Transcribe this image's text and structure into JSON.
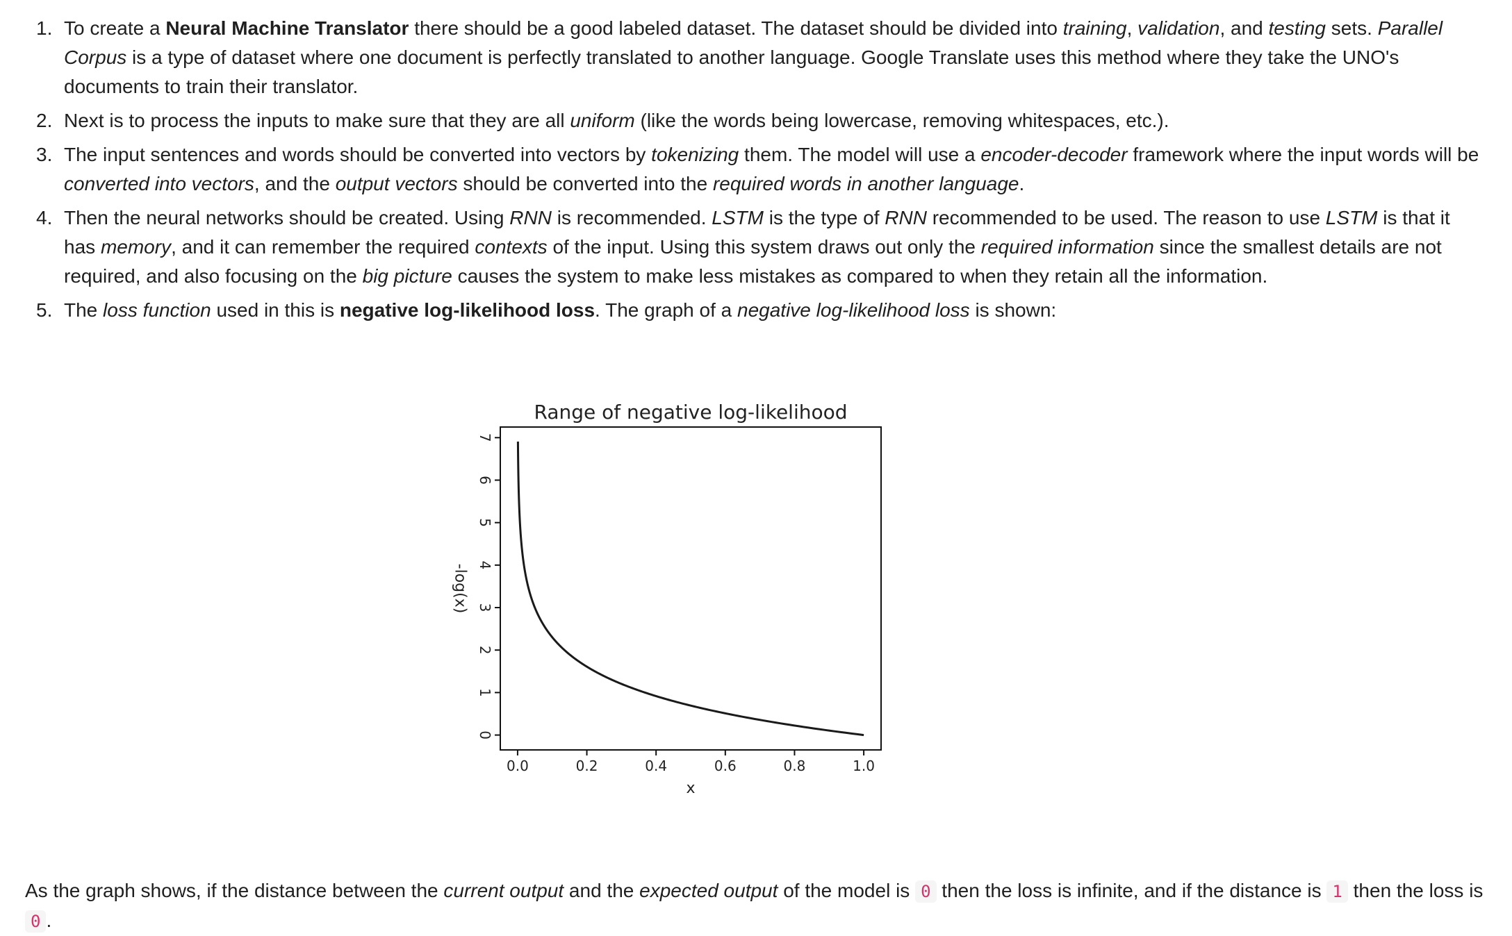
{
  "items": [
    {
      "num": "1.",
      "parts": [
        {
          "t": "To create a "
        },
        {
          "t": "Neural Machine Translator",
          "s": "b"
        },
        {
          "t": " there should be a good labeled dataset. The dataset should be divided into "
        },
        {
          "t": "training",
          "s": "i"
        },
        {
          "t": ", "
        },
        {
          "t": "validation",
          "s": "i"
        },
        {
          "t": ", and "
        },
        {
          "t": "testing",
          "s": "i"
        },
        {
          "t": " sets. "
        },
        {
          "t": "Parallel Corpus",
          "s": "i"
        },
        {
          "t": " is a type of dataset where one document is perfectly translated to another language. Google Translate uses this method where they take the UNO's documents to train their translator."
        }
      ]
    },
    {
      "num": "2.",
      "parts": [
        {
          "t": "Next is to process the inputs to make sure that they are all "
        },
        {
          "t": "uniform",
          "s": "i"
        },
        {
          "t": " (like the words being lowercase, removing whitespaces, etc.)."
        }
      ]
    },
    {
      "num": "3.",
      "parts": [
        {
          "t": "The input sentences and words should be converted into vectors by "
        },
        {
          "t": "tokenizing",
          "s": "i"
        },
        {
          "t": " them. The model will use a "
        },
        {
          "t": "encoder-decoder",
          "s": "i"
        },
        {
          "t": " framework where the input words will be "
        },
        {
          "t": "converted into vectors",
          "s": "i"
        },
        {
          "t": ", and the "
        },
        {
          "t": "output vectors",
          "s": "i"
        },
        {
          "t": " should be converted into the "
        },
        {
          "t": "required words in another language",
          "s": "i"
        },
        {
          "t": "."
        }
      ]
    },
    {
      "num": "4.",
      "parts": [
        {
          "t": "Then the neural networks should be created. Using "
        },
        {
          "t": "RNN",
          "s": "i"
        },
        {
          "t": " is recommended. "
        },
        {
          "t": "LSTM",
          "s": "i"
        },
        {
          "t": " is the type of "
        },
        {
          "t": "RNN",
          "s": "i"
        },
        {
          "t": " recommended to be used. The reason to use "
        },
        {
          "t": "LSTM",
          "s": "i"
        },
        {
          "t": " is that it has "
        },
        {
          "t": "memory",
          "s": "i"
        },
        {
          "t": ", and it can remember the required "
        },
        {
          "t": "contexts",
          "s": "i"
        },
        {
          "t": " of the input. Using this system draws out only the "
        },
        {
          "t": "required information",
          "s": "i"
        },
        {
          "t": " since the smallest details are not required, and also focusing on the "
        },
        {
          "t": "big picture",
          "s": "i"
        },
        {
          "t": " causes the system to make less mistakes as compared to when they retain all the information."
        }
      ]
    },
    {
      "num": "5.",
      "parts": [
        {
          "t": "The "
        },
        {
          "t": "loss function",
          "s": "i"
        },
        {
          "t": " used in this is "
        },
        {
          "t": "negative log-likelihood loss",
          "s": "b"
        },
        {
          "t": ". The graph of a "
        },
        {
          "t": "negative log-likelihood loss",
          "s": "i"
        },
        {
          "t": " is shown:"
        }
      ]
    }
  ],
  "chart_data": {
    "type": "line",
    "title": "Range of negative log-likelihood",
    "xlabel": "x",
    "ylabel": "-log(x)",
    "xlim": [
      -0.05,
      1.05
    ],
    "ylim": [
      -0.35,
      7.25
    ],
    "x_ticks": [
      "0.0",
      "0.2",
      "0.4",
      "0.6",
      "0.8",
      "1.0"
    ],
    "y_ticks": [
      "0",
      "1",
      "2",
      "3",
      "4",
      "5",
      "6",
      "7"
    ],
    "function": "-log(x)",
    "x_range": [
      0.001,
      1.0
    ],
    "grid": false,
    "line_color": "#1a1a1a"
  },
  "after": {
    "parts": [
      {
        "t": "As the graph shows, if the distance between the "
      },
      {
        "t": "current output",
        "s": "i"
      },
      {
        "t": " and the "
      },
      {
        "t": "expected output",
        "s": "i"
      },
      {
        "t": " of the model is "
      },
      {
        "t": "0",
        "s": "code"
      },
      {
        "t": " then the loss is infinite, and if the distance is "
      },
      {
        "t": "1",
        "s": "code"
      },
      {
        "t": " then the loss is "
      },
      {
        "t": "0",
        "s": "code"
      },
      {
        "t": "."
      }
    ]
  }
}
